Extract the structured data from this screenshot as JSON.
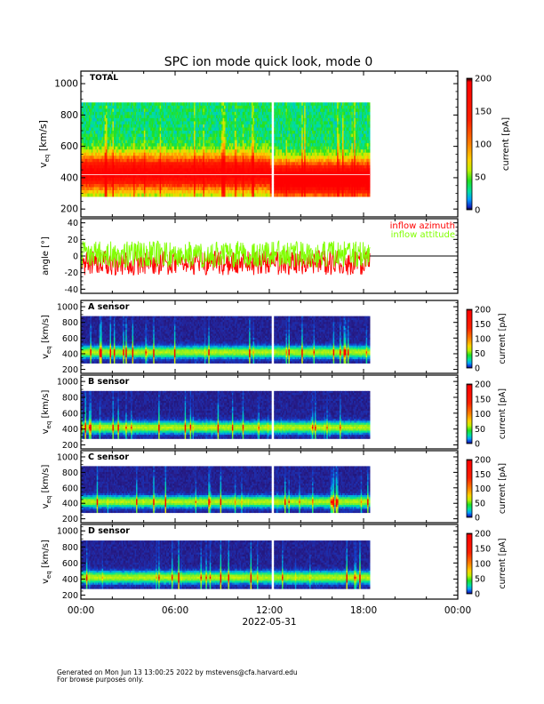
{
  "title": "SPC ion mode quick look, mode 0",
  "footer": {
    "line1": "Generated on Mon Jun 13 13:00:25 2022 by mstevens@cfa.harvard.edu",
    "line2": "For browse purposes only."
  },
  "colors": {
    "azimuth": "#ff0000",
    "attitude": "#80ff00",
    "background": "#ffffff"
  },
  "chart_data": [
    {
      "type": "heatmap",
      "panel": "total",
      "label": "TOTAL",
      "ylabel": "v_eq [km/s]",
      "ylabel_main": "v",
      "ylabel_sub": "eq",
      "ylabel_unit": "[km/s]",
      "ylim": [
        150,
        1080
      ],
      "yticks": [
        "200",
        "400",
        "600",
        "800",
        "1000"
      ],
      "ytick_values": [
        200,
        400,
        600,
        800,
        1000
      ],
      "colorbar": {
        "label": "current [pA]",
        "range": [
          0,
          200
        ],
        "ticks": [
          "0",
          "50",
          "100",
          "150",
          "200"
        ],
        "tick_values": [
          0,
          50,
          100,
          150,
          200
        ]
      },
      "data_extent_hours": [
        0,
        18.4
      ],
      "velocity_range": [
        280,
        880
      ],
      "peak_velocity": 420,
      "gap_hours": [
        12.1,
        12.2
      ]
    },
    {
      "type": "line",
      "panel": "angle",
      "ylabel": "angle [°]",
      "ylim": [
        -45,
        45
      ],
      "yticks": [
        "-40",
        "-20",
        "0",
        "20",
        "40"
      ],
      "ytick_values": [
        -40,
        -20,
        0,
        20,
        40
      ],
      "series": [
        {
          "name": "inflow azimuth",
          "mean": -8,
          "range": [
            -25,
            20
          ]
        },
        {
          "name": "inflow attitude",
          "mean": 2,
          "range": [
            -20,
            25
          ]
        }
      ],
      "data_extent_hours": [
        0,
        18.4
      ]
    },
    {
      "type": "heatmap",
      "panel": "A",
      "label": "A sensor",
      "ylabel_main": "v",
      "ylabel_sub": "eq",
      "ylabel_unit": "[km/s]",
      "ylim": [
        150,
        1080
      ],
      "yticks": [
        "200",
        "400",
        "600",
        "800",
        "1000"
      ],
      "ytick_values": [
        200,
        400,
        600,
        800,
        1000
      ],
      "colorbar": {
        "label": "current [pA]",
        "range": [
          0,
          200
        ],
        "ticks": [
          "0",
          "50",
          "100",
          "150",
          "200"
        ],
        "tick_values": [
          0,
          50,
          100,
          150,
          200
        ]
      }
    },
    {
      "type": "heatmap",
      "panel": "B",
      "label": "B sensor",
      "ylabel_main": "v",
      "ylabel_sub": "eq",
      "ylabel_unit": "[km/s]",
      "ylim": [
        150,
        1080
      ],
      "yticks": [
        "200",
        "400",
        "600",
        "800",
        "1000"
      ],
      "ytick_values": [
        200,
        400,
        600,
        800,
        1000
      ],
      "colorbar": {
        "label": "current [pA]",
        "range": [
          0,
          200
        ],
        "ticks": [
          "0",
          "50",
          "100",
          "150",
          "200"
        ],
        "tick_values": [
          0,
          50,
          100,
          150,
          200
        ]
      }
    },
    {
      "type": "heatmap",
      "panel": "C",
      "label": "C sensor",
      "ylabel_main": "v",
      "ylabel_sub": "eq",
      "ylabel_unit": "[km/s]",
      "ylim": [
        150,
        1080
      ],
      "yticks": [
        "200",
        "400",
        "600",
        "800",
        "1000"
      ],
      "ytick_values": [
        200,
        400,
        600,
        800,
        1000
      ],
      "colorbar": {
        "label": "current [pA]",
        "range": [
          0,
          200
        ],
        "ticks": [
          "0",
          "50",
          "100",
          "150",
          "200"
        ],
        "tick_values": [
          0,
          50,
          100,
          150,
          200
        ]
      }
    },
    {
      "type": "heatmap",
      "panel": "D",
      "label": "D sensor",
      "ylabel_main": "v",
      "ylabel_sub": "eq",
      "ylabel_unit": "[km/s]",
      "ylim": [
        150,
        1080
      ],
      "yticks": [
        "200",
        "400",
        "600",
        "800",
        "1000"
      ],
      "ytick_values": [
        200,
        400,
        600,
        800,
        1000
      ],
      "colorbar": {
        "label": "current [pA]",
        "range": [
          0,
          200
        ],
        "ticks": [
          "0",
          "50",
          "100",
          "150",
          "200"
        ],
        "tick_values": [
          0,
          50,
          100,
          150,
          200
        ]
      }
    }
  ],
  "xaxis": {
    "ticks": [
      "00:00",
      "06:00",
      "12:00",
      "18:00",
      "00:00"
    ],
    "tick_hours": [
      0,
      6,
      12,
      18,
      24
    ],
    "xlim_hours": [
      0,
      24
    ],
    "date": "2022-05-31"
  }
}
